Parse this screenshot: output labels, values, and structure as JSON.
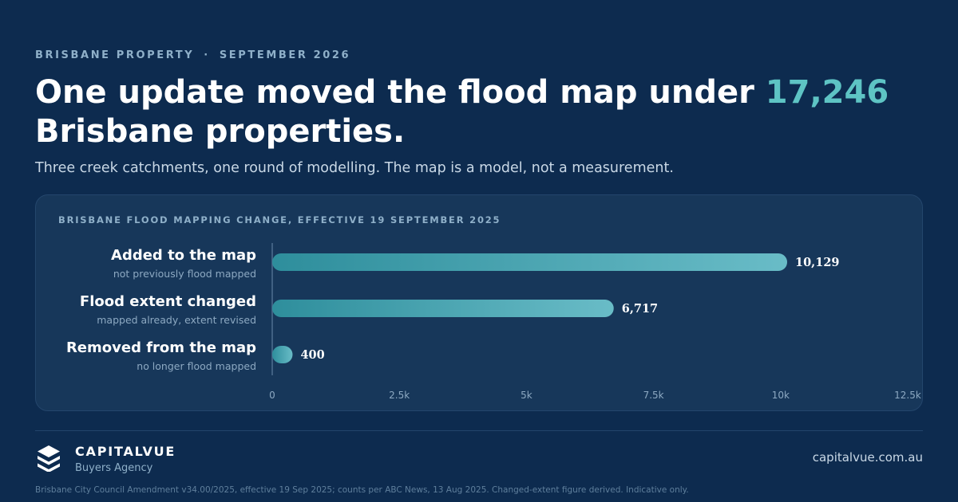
{
  "header": {
    "eyebrow_left": "BRISBANE PROPERTY",
    "eyebrow_sep": "·",
    "eyebrow_right": "SEPTEMBER 2026",
    "headline_pre": "One update moved the flood map under ",
    "headline_accent": "17,246",
    "headline_post": " Brisbane properties.",
    "subhead": "Three creek catchments, one round of modelling. The map is a model, not a measurement."
  },
  "chart_data": {
    "type": "bar",
    "orientation": "horizontal",
    "title": "BRISBANE FLOOD MAPPING CHANGE, EFFECTIVE 19 SEPTEMBER 2025",
    "categories": [
      "Added to the map",
      "Flood extent changed",
      "Removed from the map"
    ],
    "sublabels": [
      "not previously flood mapped",
      "mapped already, extent revised",
      "no longer flood mapped"
    ],
    "values": [
      10129,
      6717,
      400
    ],
    "value_labels": [
      "10,129",
      "6,717",
      "400"
    ],
    "xlim": [
      0,
      12500
    ],
    "ticks": [
      0,
      2500,
      5000,
      7500,
      10000,
      12500
    ],
    "tick_labels": [
      "0",
      "2.5k",
      "5k",
      "7.5k",
      "10k",
      "12.5k"
    ],
    "grid": false,
    "bar_gradient": [
      "#2e8e9c",
      "#69bcc7"
    ]
  },
  "brand": {
    "name": "CAPITALVUE",
    "tagline": "Buyers Agency",
    "logo_icon": "stacked-layers-icon"
  },
  "footer": {
    "site": "capitalvue.com.au",
    "note": "Brisbane City Council Amendment v34.00/2025, effective 19 Sep 2025; counts per ABC News, 13 Aug 2025. Changed-extent figure derived. Indicative only."
  },
  "colors": {
    "background": "#0d2b4f",
    "card": "#17375a",
    "accent": "#5ec4c4"
  }
}
